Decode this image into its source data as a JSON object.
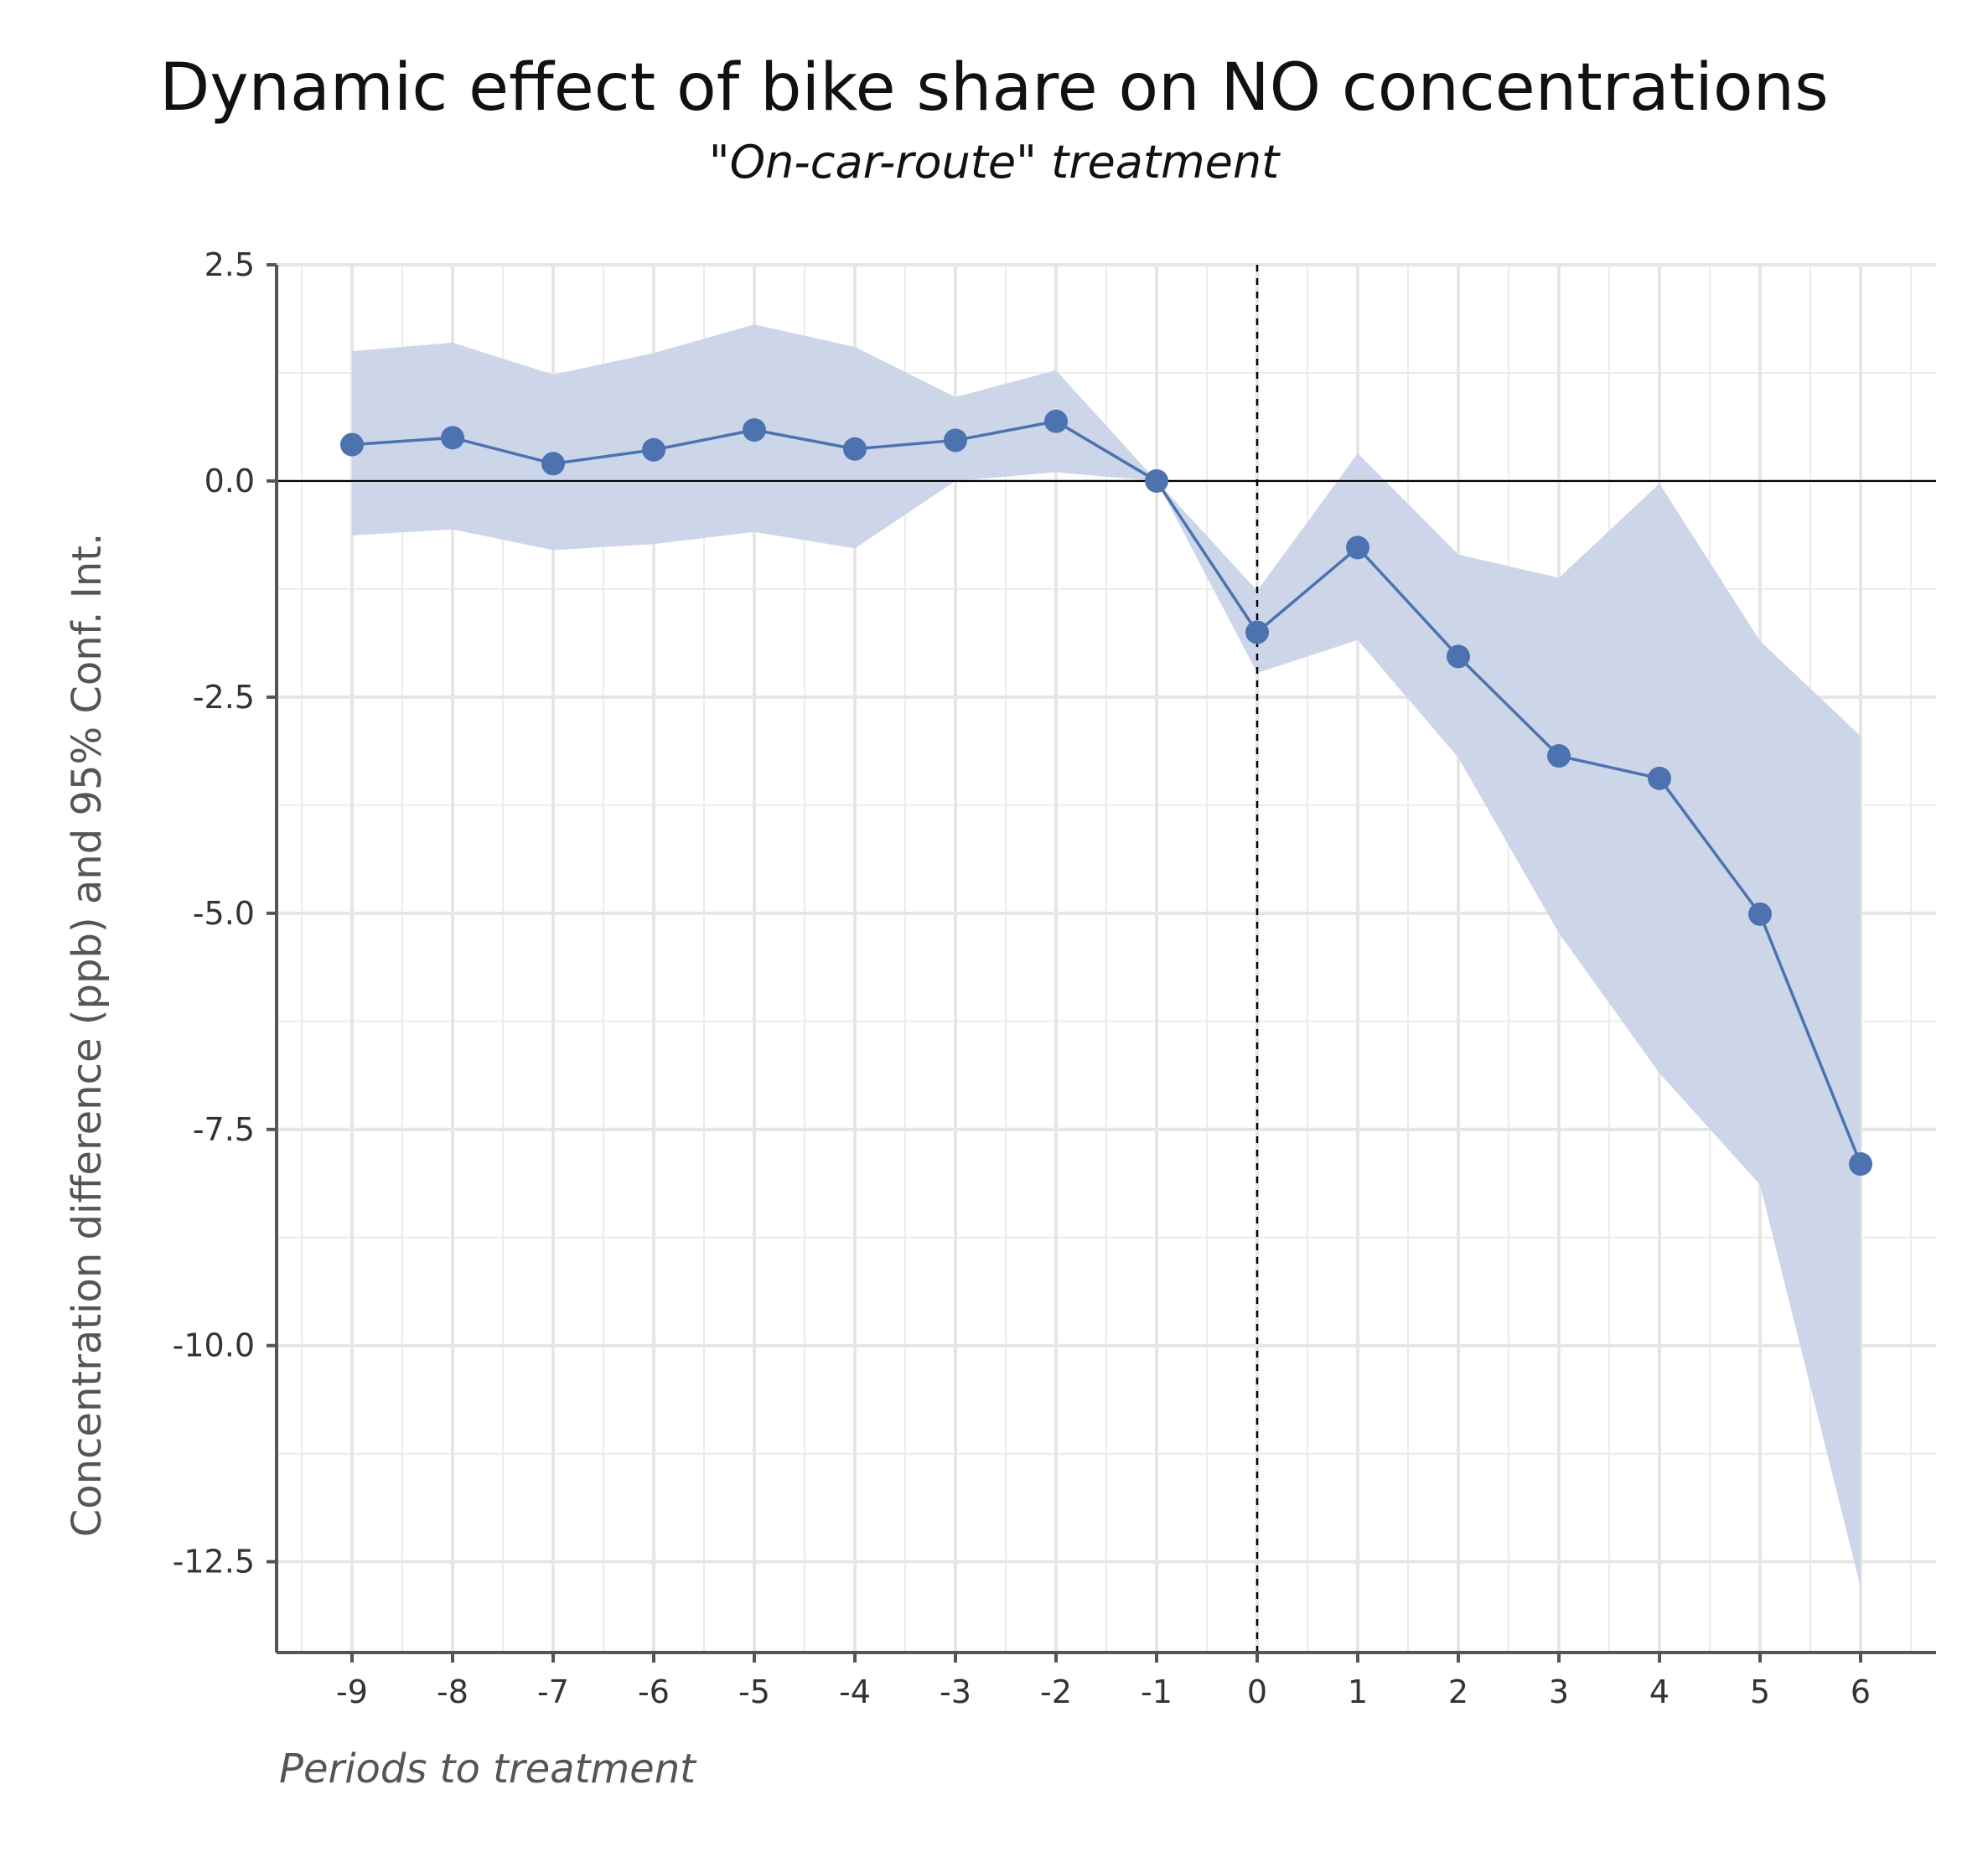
{
  "chart_data": {
    "type": "line",
    "title": "Dynamic effect of bike share on NO concentrations",
    "subtitle": "\"On-car-route\" treatment",
    "xlabel": "Periods to treatment",
    "ylabel": "Concentration difference (ppb) and 95% Conf. Int.",
    "x": [
      -9,
      -8,
      -7,
      -6,
      -5,
      -4,
      -3,
      -2,
      -1,
      0,
      1,
      2,
      3,
      4,
      5,
      6
    ],
    "series": [
      {
        "values": [
          0.42,
          0.5,
          0.2,
          0.36,
          0.59,
          0.37,
          0.47,
          0.69,
          0.0,
          -1.75,
          -0.77,
          -2.03,
          -3.18,
          -3.44,
          -5.01,
          -7.9
        ],
        "ci_upper": [
          1.5,
          1.6,
          1.23,
          1.48,
          1.81,
          1.55,
          0.97,
          1.28,
          0.0,
          -1.27,
          0.32,
          -0.85,
          -1.12,
          -0.03,
          -1.85,
          -2.95
        ],
        "ci_lower": [
          -0.63,
          -0.56,
          -0.8,
          -0.73,
          -0.59,
          -0.78,
          0.0,
          0.1,
          0.0,
          -2.22,
          -1.84,
          -3.2,
          -5.23,
          -6.85,
          -8.14,
          -12.8
        ],
        "color": "#4c72b0",
        "band_color": "#ccd6e8"
      }
    ],
    "xticks": [
      "-9",
      "-8",
      "-7",
      "-6",
      "-5",
      "-4",
      "-3",
      "-2",
      "-1",
      "0",
      "1",
      "2",
      "3",
      "4",
      "5",
      "6"
    ],
    "yticks": [
      "2.5",
      "0.0",
      "-2.5",
      "-5.0",
      "-7.5",
      "-10.0",
      "-12.5"
    ],
    "ytick_values": [
      2.5,
      0.0,
      -2.5,
      -5.0,
      -7.5,
      -10.0,
      -12.5
    ],
    "xlim": [
      -9.75,
      6.75
    ],
    "ylim": [
      -13.55,
      2.5
    ],
    "reference_lines": {
      "horizontal_y": 0,
      "vertical_x": 0
    },
    "grid": true,
    "legend": "none"
  }
}
